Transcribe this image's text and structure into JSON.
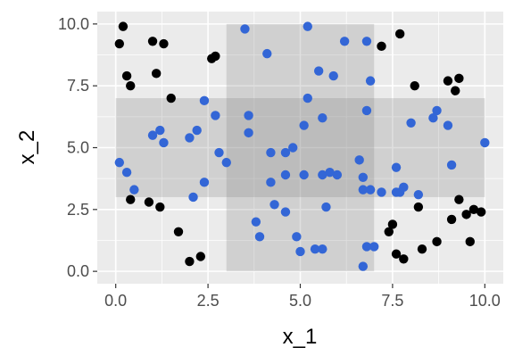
{
  "chart_data": {
    "type": "scatter",
    "title": "",
    "xlabel": "x_1",
    "ylabel": "x_2",
    "xlim": [
      -0.5,
      10.5
    ],
    "ylim": [
      -0.5,
      10.5
    ],
    "grid": true,
    "legend": "none",
    "x_ticks": [
      0.0,
      2.5,
      5.0,
      7.5,
      10.0
    ],
    "x_tick_labels": [
      "0.0",
      "2.5",
      "5.0",
      "7.5",
      "10.0"
    ],
    "y_ticks": [
      0.0,
      2.5,
      5.0,
      7.5,
      10.0
    ],
    "y_tick_labels": [
      "0.0",
      "2.5",
      "5.0",
      "7.5",
      "10.0"
    ],
    "regions": [
      {
        "xmin": 0,
        "xmax": 10,
        "ymin": 3,
        "ymax": 7
      },
      {
        "xmin": 3,
        "xmax": 7,
        "ymin": 0,
        "ymax": 10
      }
    ],
    "series": [
      {
        "color": "#000000",
        "points": [
          [
            0.2,
            9.9
          ],
          [
            0.1,
            9.2
          ],
          [
            0.3,
            7.9
          ],
          [
            0.4,
            7.5
          ],
          [
            1.0,
            9.3
          ],
          [
            1.3,
            9.2
          ],
          [
            1.1,
            8.0
          ],
          [
            1.5,
            7.0
          ],
          [
            2.6,
            8.6
          ],
          [
            2.7,
            8.7
          ],
          [
            0.4,
            2.9
          ],
          [
            0.9,
            2.8
          ],
          [
            1.2,
            2.6
          ],
          [
            1.7,
            1.6
          ],
          [
            2.0,
            0.4
          ],
          [
            2.3,
            0.6
          ],
          [
            7.7,
            9.6
          ],
          [
            7.2,
            9.1
          ],
          [
            8.1,
            7.5
          ],
          [
            9.0,
            7.7
          ],
          [
            9.2,
            7.3
          ],
          [
            9.3,
            7.8
          ],
          [
            9.3,
            2.9
          ],
          [
            9.1,
            2.1
          ],
          [
            9.5,
            2.3
          ],
          [
            9.7,
            2.5
          ],
          [
            9.9,
            2.4
          ],
          [
            9.6,
            1.2
          ],
          [
            8.7,
            1.2
          ],
          [
            8.3,
            0.9
          ],
          [
            8.2,
            2.6
          ],
          [
            7.5,
            1.9
          ],
          [
            7.4,
            1.6
          ],
          [
            7.6,
            0.7
          ],
          [
            7.8,
            0.5
          ]
        ]
      },
      {
        "color": "#3366d6",
        "points": [
          [
            0.1,
            4.4
          ],
          [
            0.3,
            4.0
          ],
          [
            0.5,
            3.3
          ],
          [
            1.0,
            5.5
          ],
          [
            1.2,
            5.7
          ],
          [
            1.3,
            5.2
          ],
          [
            2.0,
            5.4
          ],
          [
            2.2,
            5.7
          ],
          [
            2.1,
            3.0
          ],
          [
            2.4,
            3.6
          ],
          [
            2.4,
            6.9
          ],
          [
            2.7,
            6.3
          ],
          [
            2.8,
            4.8
          ],
          [
            3.0,
            4.4
          ],
          [
            3.5,
            9.8
          ],
          [
            4.1,
            8.8
          ],
          [
            3.6,
            6.3
          ],
          [
            3.6,
            5.6
          ],
          [
            4.2,
            4.8
          ],
          [
            4.2,
            3.6
          ],
          [
            4.6,
            4.8
          ],
          [
            4.8,
            5.0
          ],
          [
            4.6,
            3.9
          ],
          [
            4.3,
            2.7
          ],
          [
            4.6,
            2.4
          ],
          [
            3.8,
            2.0
          ],
          [
            3.9,
            1.4
          ],
          [
            4.9,
            1.4
          ],
          [
            5.0,
            0.8
          ],
          [
            5.4,
            0.9
          ],
          [
            5.6,
            0.9
          ],
          [
            5.2,
            9.9
          ],
          [
            5.5,
            8.1
          ],
          [
            5.9,
            7.9
          ],
          [
            6.2,
            9.3
          ],
          [
            6.8,
            9.3
          ],
          [
            6.9,
            7.7
          ],
          [
            5.2,
            7.0
          ],
          [
            5.1,
            5.9
          ],
          [
            5.6,
            6.2
          ],
          [
            5.1,
            3.9
          ],
          [
            5.6,
            3.9
          ],
          [
            5.8,
            4.0
          ],
          [
            6.0,
            3.9
          ],
          [
            5.7,
            2.6
          ],
          [
            6.6,
            4.5
          ],
          [
            6.8,
            6.5
          ],
          [
            6.7,
            3.8
          ],
          [
            6.7,
            3.3
          ],
          [
            6.9,
            3.3
          ],
          [
            7.2,
            3.2
          ],
          [
            7.6,
            4.2
          ],
          [
            7.6,
            3.2
          ],
          [
            7.7,
            3.2
          ],
          [
            7.8,
            3.4
          ],
          [
            8.2,
            3.1
          ],
          [
            6.8,
            1.0
          ],
          [
            7.0,
            1.0
          ],
          [
            6.7,
            0.2
          ],
          [
            8.0,
            6.0
          ],
          [
            8.6,
            6.2
          ],
          [
            8.7,
            6.5
          ],
          [
            9.0,
            5.9
          ],
          [
            9.1,
            4.3
          ],
          [
            10.0,
            5.2
          ]
        ]
      }
    ]
  }
}
